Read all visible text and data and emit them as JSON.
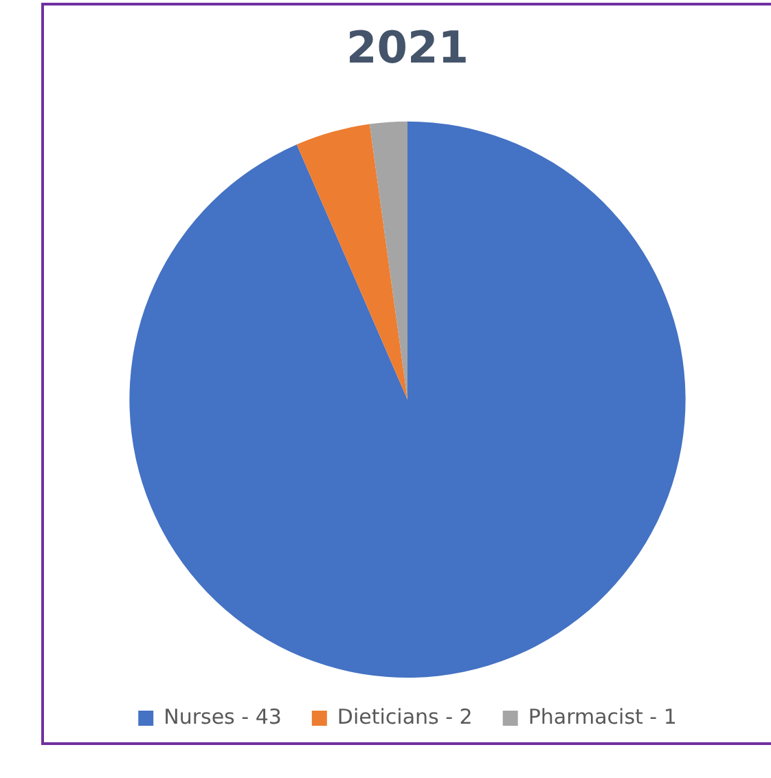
{
  "chart_data": {
    "type": "pie",
    "title": "2021",
    "categories": [
      "Nurses",
      "Dieticians",
      "Pharmacist"
    ],
    "values": [
      43,
      2,
      1
    ],
    "value_labels": [
      "43",
      "2",
      "1"
    ],
    "colors": [
      "#4472c4",
      "#ed7d31",
      "#a5a5a5"
    ],
    "legend": "bottom"
  }
}
